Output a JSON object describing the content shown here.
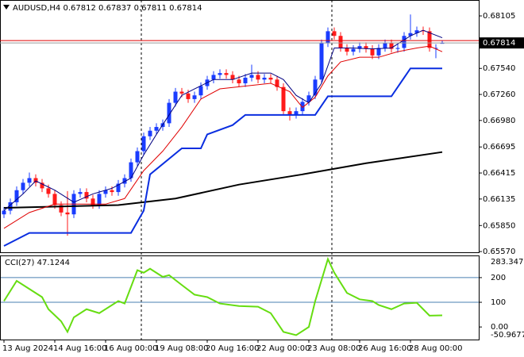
{
  "chart_data": [
    {
      "type": "candlestick",
      "title": "AUDUSD,H4",
      "open": [
        0.6597,
        0.6601,
        0.661,
        0.6623,
        0.6631,
        0.6636,
        0.6631,
        0.6625,
        0.6619,
        0.6607,
        0.6599,
        0.6597,
        0.6619,
        0.6621,
        0.6614,
        0.6607,
        0.6619,
        0.6623,
        0.6621,
        0.663,
        0.6636,
        0.6653,
        0.6665,
        0.6681,
        0.6687,
        0.6691,
        0.6695,
        0.6717,
        0.6729,
        0.6727,
        0.6721,
        0.6725,
        0.6735,
        0.6742,
        0.6747,
        0.6749,
        0.6747,
        0.6742,
        0.6738,
        0.6744,
        0.6747,
        0.6742,
        0.6744,
        0.6742,
        0.6734,
        0.6708,
        0.6704,
        0.6708,
        0.6718,
        0.6725,
        0.6742,
        0.6781,
        0.6794,
        0.6789,
        0.6776,
        0.6772,
        0.6775,
        0.6778,
        0.6775,
        0.6768,
        0.6776,
        0.6781,
        0.6775,
        0.6776,
        0.6789,
        0.6792,
        0.6795,
        0.6794,
        0.6776,
        0.67812
      ],
      "high": [
        0.6605,
        0.6614,
        0.6627,
        0.6635,
        0.6642,
        0.664,
        0.6635,
        0.6629,
        0.6623,
        0.6611,
        0.6622,
        0.6623,
        0.6625,
        0.6625,
        0.6618,
        0.6623,
        0.6627,
        0.6627,
        0.6634,
        0.664,
        0.6657,
        0.6669,
        0.6685,
        0.6691,
        0.6695,
        0.6699,
        0.6721,
        0.6733,
        0.6733,
        0.6731,
        0.6729,
        0.6739,
        0.6746,
        0.6751,
        0.6753,
        0.6753,
        0.6751,
        0.6746,
        0.6748,
        0.6758,
        0.6751,
        0.6748,
        0.6748,
        0.6746,
        0.6738,
        0.6712,
        0.6712,
        0.6722,
        0.6729,
        0.6746,
        0.6785,
        0.6798,
        0.6798,
        0.6793,
        0.678,
        0.6779,
        0.6782,
        0.6782,
        0.6779,
        0.678,
        0.6785,
        0.6785,
        0.678,
        0.6793,
        0.6812,
        0.6799,
        0.6799,
        0.6798,
        0.678,
        0.67837
      ],
      "low": [
        0.6593,
        0.6597,
        0.6606,
        0.6619,
        0.6627,
        0.6627,
        0.6621,
        0.6615,
        0.6603,
        0.6595,
        0.6574,
        0.6593,
        0.6615,
        0.661,
        0.6603,
        0.6603,
        0.6615,
        0.6617,
        0.6617,
        0.6626,
        0.6632,
        0.6649,
        0.6661,
        0.6677,
        0.6683,
        0.6687,
        0.6691,
        0.6713,
        0.6723,
        0.6717,
        0.6717,
        0.6721,
        0.6731,
        0.6738,
        0.6743,
        0.6743,
        0.6738,
        0.6734,
        0.6734,
        0.674,
        0.6738,
        0.6738,
        0.6738,
        0.673,
        0.6704,
        0.6698,
        0.67,
        0.6704,
        0.6714,
        0.6721,
        0.6738,
        0.6777,
        0.6785,
        0.6772,
        0.6768,
        0.6768,
        0.6771,
        0.6771,
        0.6764,
        0.6764,
        0.6772,
        0.6771,
        0.6771,
        0.6772,
        0.6785,
        0.6788,
        0.679,
        0.6772,
        0.6765,
        0.67811
      ],
      "close": [
        0.6601,
        0.661,
        0.6623,
        0.6631,
        0.6636,
        0.6631,
        0.6625,
        0.6619,
        0.6607,
        0.6599,
        0.6597,
        0.6619,
        0.6621,
        0.6614,
        0.6607,
        0.6619,
        0.6623,
        0.6621,
        0.663,
        0.6636,
        0.6653,
        0.6665,
        0.6681,
        0.6687,
        0.6691,
        0.6695,
        0.6717,
        0.6729,
        0.6727,
        0.6721,
        0.6725,
        0.6735,
        0.6742,
        0.6747,
        0.6749,
        0.6747,
        0.6742,
        0.6738,
        0.6744,
        0.6747,
        0.6742,
        0.6744,
        0.6742,
        0.6734,
        0.6708,
        0.6704,
        0.6708,
        0.6718,
        0.6725,
        0.6742,
        0.6781,
        0.6794,
        0.6789,
        0.6776,
        0.6772,
        0.6775,
        0.6778,
        0.6775,
        0.6768,
        0.6776,
        0.6781,
        0.6775,
        0.6776,
        0.6789,
        0.6792,
        0.6795,
        0.6794,
        0.6776,
        0.6776,
        0.67814
      ],
      "up_color": "#1a3cff",
      "down_color": "#ff1a1a",
      "lines": [
        {
          "color": "#000000",
          "width": 2,
          "x": [
            0,
            18,
            27,
            37,
            47,
            57,
            69
          ],
          "values": [
            0.6604,
            0.6607,
            0.6614,
            0.6629,
            0.664,
            0.6652,
            0.6664
          ]
        },
        {
          "color": "#0a2ee0",
          "width": 2,
          "x": [
            0,
            4,
            20,
            22,
            23,
            28,
            31,
            32,
            36,
            38,
            49,
            51,
            61,
            64,
            69
          ],
          "values": [
            0.6563,
            0.6577,
            0.6577,
            0.6601,
            0.664,
            0.6668,
            0.6668,
            0.6683,
            0.6693,
            0.6704,
            0.6704,
            0.6724,
            0.6724,
            0.6754,
            0.6754
          ]
        },
        {
          "color": "#e00000",
          "width": 1,
          "x": [
            0,
            4,
            8,
            12,
            16,
            19,
            22,
            25,
            28,
            31,
            34,
            38,
            42,
            45,
            47,
            49,
            51,
            53,
            56,
            59,
            62,
            65,
            67,
            69
          ],
          "values": [
            0.6582,
            0.6599,
            0.6608,
            0.6608,
            0.6608,
            0.6614,
            0.6644,
            0.6665,
            0.6691,
            0.6721,
            0.6732,
            0.6735,
            0.6738,
            0.6729,
            0.6712,
            0.6723,
            0.6746,
            0.6761,
            0.6766,
            0.6766,
            0.6772,
            0.6776,
            0.6778,
            0.6772
          ]
        },
        {
          "color": "#000080",
          "width": 1,
          "x": [
            0,
            3,
            5,
            8,
            11,
            14,
            17,
            20,
            22,
            24,
            26,
            28,
            30,
            33,
            36,
            39,
            42,
            44,
            46,
            48,
            50,
            52,
            55,
            58,
            61,
            64,
            66,
            69
          ],
          "values": [
            0.6601,
            0.6619,
            0.6633,
            0.6623,
            0.661,
            0.6619,
            0.6625,
            0.6636,
            0.6661,
            0.6683,
            0.6704,
            0.6725,
            0.6732,
            0.6742,
            0.6742,
            0.6749,
            0.6749,
            0.6742,
            0.6725,
            0.6717,
            0.6738,
            0.6776,
            0.6776,
            0.6775,
            0.6776,
            0.6789,
            0.6795,
            0.6787
          ]
        }
      ],
      "ask_line": 0.6784,
      "ylim": [
        0.65562,
        0.68276
      ],
      "yticks": [
        {
          "value": 0.6557,
          "label": "0.65570"
        },
        {
          "value": 0.6585,
          "label": "0.65850"
        },
        0.66135,
        0.66415,
        0.66695,
        {
          "value": 0.6698,
          "label": "0.66980"
        },
        {
          "value": 0.6726,
          "label": "0.67260"
        },
        {
          "value": 0.6754,
          "label": "0.67540"
        },
        0.68105
      ],
      "xticks": [
        {
          "value": 0,
          "label": "13 Aug 2024"
        },
        {
          "value": 8,
          "label": "14 Aug 16:00"
        },
        {
          "value": 16,
          "label": "16 Aug 00:00"
        },
        {
          "value": 24,
          "label": "19 Aug 08:00"
        },
        {
          "value": 32,
          "label": "20 Aug 16:00"
        },
        {
          "value": 40,
          "label": "22 Aug 00:00"
        },
        {
          "value": 48,
          "label": "23 Aug 08:00"
        },
        {
          "value": 56,
          "label": "26 Aug 16:00"
        },
        {
          "value": 64,
          "label": "28 Aug 00:00"
        }
      ]
    },
    {
      "type": "line",
      "title": "CCI(27)",
      "color": "#66dd11",
      "x": [
        0,
        2,
        4,
        6,
        7,
        9,
        10,
        11,
        13,
        15,
        18,
        19,
        21,
        22,
        23,
        25,
        26,
        28,
        30,
        32,
        34,
        37,
        40,
        42,
        44,
        46,
        48,
        49,
        51,
        52,
        54,
        56,
        58,
        59,
        61,
        63,
        65,
        66,
        67,
        69
      ],
      "values": [
        105,
        187,
        154,
        121,
        72,
        23,
        -20,
        39,
        72,
        56,
        105,
        95,
        230,
        220,
        236,
        203,
        210,
        170,
        131,
        121,
        95,
        85,
        82,
        56,
        -20,
        -33,
        0,
        105,
        275,
        220,
        138,
        112,
        105,
        89,
        72,
        95,
        98,
        72,
        46,
        47.1244
      ],
      "ylim": [
        -50.9677,
        283.3475
      ],
      "yticks": [
        {
          "value": 0,
          "label": "0.00"
        },
        100,
        200
      ],
      "levels": [
        100,
        200
      ],
      "level_color": "#4a7fb0"
    }
  ]
}
